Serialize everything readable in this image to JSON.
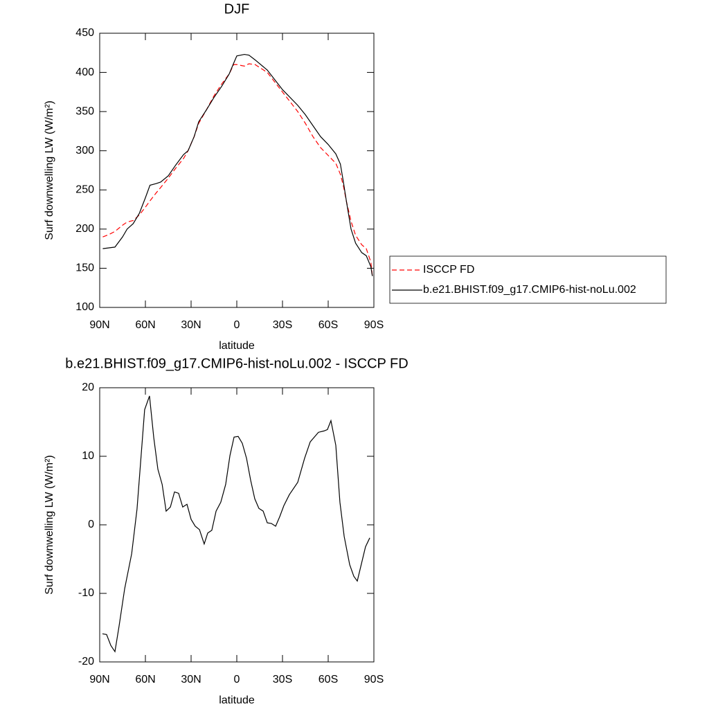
{
  "chart_data": [
    {
      "type": "line",
      "title": "DJF",
      "xlabel": "latitude",
      "ylabel": "Surf downwelling LW (W/m²)",
      "x": [
        88,
        84,
        80,
        75,
        72,
        68,
        64,
        60,
        57,
        53,
        50,
        45,
        40,
        35,
        32,
        28,
        25,
        20,
        15,
        10,
        5,
        2,
        0,
        -5,
        -8,
        -12,
        -20,
        -30,
        -40,
        -45,
        -50,
        -55,
        -60,
        -65,
        -68,
        -70,
        -72,
        -75,
        -78,
        -82,
        -85,
        -88,
        -89
      ],
      "series": [
        {
          "name": "ISCCP FD",
          "color": "#ff0000",
          "dash": true,
          "values": [
            190,
            193,
            197,
            205,
            209,
            211,
            218,
            228,
            236,
            246,
            253,
            265,
            278,
            290,
            300,
            318,
            335,
            352,
            370,
            385,
            398,
            410,
            410,
            408,
            411,
            410,
            400,
            375,
            350,
            335,
            318,
            304,
            294,
            284,
            270,
            255,
            235,
            210,
            192,
            180,
            175,
            158,
            140
          ]
        },
        {
          "name": "b.e21.BHIST.f09_g17.CMIP6-hist-noLu.002",
          "color": "#000000",
          "dash": false,
          "values": [
            175,
            176,
            177,
            190,
            200,
            207,
            220,
            240,
            256,
            258,
            260,
            268,
            282,
            295,
            300,
            318,
            337,
            352,
            368,
            382,
            398,
            412,
            421,
            423,
            422,
            416,
            403,
            378,
            358,
            346,
            332,
            318,
            308,
            296,
            283,
            260,
            235,
            200,
            182,
            170,
            166,
            152,
            140
          ]
        }
      ],
      "xlim": [
        90,
        -90
      ],
      "xticks": [
        {
          "value": 90,
          "label": "90N"
        },
        {
          "value": 60,
          "label": "60N"
        },
        {
          "value": 30,
          "label": "30N"
        },
        0,
        {
          "value": -30,
          "label": "30S"
        },
        {
          "value": -60,
          "label": "60S"
        },
        {
          "value": -90,
          "label": "90S"
        }
      ],
      "ylim": [
        100,
        450
      ],
      "yticks": [
        100,
        150,
        200,
        250,
        300,
        350,
        400,
        450
      ],
      "legend": "right"
    },
    {
      "type": "line",
      "title": "b.e21.BHIST.f09_g17.CMIP6-hist-noLu.002 - ISCCP FD",
      "xlabel": "latitude",
      "ylabel": "Surf downwelling LW (W/m²)",
      "color": "#000000",
      "x": [
        88.2,
        85.5,
        82.7,
        80,
        77.3,
        73.6,
        69,
        65.5,
        60.5,
        57.3,
        54.5,
        51.8,
        49,
        46.4,
        43.6,
        40.9,
        38.2,
        35.5,
        32.7,
        30,
        27.3,
        24.5,
        21.4,
        19.1,
        16.4,
        13.6,
        10.5,
        7.3,
        4.5,
        1.8,
        -0.9,
        -3.6,
        -6.4,
        -9.1,
        -11.8,
        -14.5,
        -17.3,
        -20,
        -22.7,
        -25.5,
        -28.2,
        -30.9,
        -34.5,
        -40,
        -44.5,
        -48.2,
        -53.6,
        -57.3,
        -59.5,
        -61.8,
        -65,
        -67.7,
        -70.5,
        -74.1,
        -76.8,
        -79.1,
        -84.5,
        -87.3
      ],
      "values": [
        -15.9,
        -16,
        -17.6,
        -18.5,
        -14.8,
        -9.3,
        -4.2,
        2.3,
        16.8,
        18.8,
        12.7,
        8.1,
        5.9,
        2,
        2.6,
        4.8,
        4.6,
        2.6,
        3,
        0.8,
        -0.2,
        -0.7,
        -2.8,
        -1.2,
        -0.8,
        2,
        3.3,
        5.9,
        10.1,
        12.8,
        12.9,
        11.9,
        9.7,
        6.5,
        3.8,
        2.4,
        2,
        0.3,
        0.2,
        -0.2,
        1.2,
        2.8,
        4.4,
        6.2,
        9.7,
        12.1,
        13.5,
        13.7,
        13.9,
        15.2,
        11.6,
        3.3,
        -1.7,
        -5.8,
        -7.5,
        -8.2,
        -3.2,
        -1.9
      ],
      "xlim": [
        90,
        -90
      ],
      "xticks": [
        {
          "value": 90,
          "label": "90N"
        },
        {
          "value": 60,
          "label": "60N"
        },
        {
          "value": 30,
          "label": "30N"
        },
        0,
        {
          "value": -30,
          "label": "30S"
        },
        {
          "value": -60,
          "label": "60S"
        },
        {
          "value": -90,
          "label": "90S"
        }
      ],
      "ylim": [
        -20,
        20
      ],
      "yticks": [
        -20,
        -10,
        0,
        10,
        20
      ]
    }
  ]
}
